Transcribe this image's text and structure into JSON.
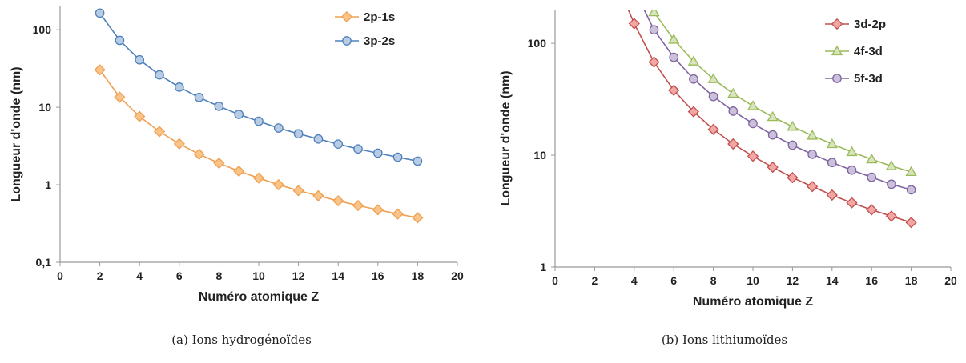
{
  "chart_data": [
    {
      "type": "line",
      "caption": "(a) Ions hydrogénoïdes",
      "xlabel": "Numéro atomique Z",
      "ylabel": "Longueur d'onde (nm)",
      "y_scale": "log",
      "xlim": [
        0,
        20
      ],
      "ylim": [
        0.1,
        200
      ],
      "x_ticks": [
        0,
        2,
        4,
        6,
        8,
        10,
        12,
        14,
        16,
        18,
        20
      ],
      "y_ticks": [
        {
          "value": 0.1,
          "label": "0,1"
        },
        {
          "value": 1,
          "label": "1"
        },
        {
          "value": 10,
          "label": "10"
        },
        {
          "value": 100,
          "label": "100"
        }
      ],
      "legend_position": "top-right",
      "series": [
        {
          "name": "2p-1s",
          "marker": "diamond",
          "color": "#f0a050",
          "fill": "#f8c48a",
          "x": [
            2,
            3,
            4,
            5,
            6,
            7,
            8,
            9,
            10,
            11,
            12,
            13,
            14,
            15,
            16,
            17,
            18
          ],
          "y": [
            30.4,
            13.5,
            7.6,
            4.86,
            3.38,
            2.48,
            1.9,
            1.5,
            1.22,
            1.0,
            0.84,
            0.72,
            0.62,
            0.54,
            0.475,
            0.42,
            0.375
          ]
        },
        {
          "name": "3p-2s",
          "marker": "circle",
          "color": "#4f81bd",
          "fill": "#b8cce4",
          "x": [
            2,
            3,
            4,
            5,
            6,
            7,
            8,
            9,
            10,
            11,
            12,
            13,
            14,
            15,
            16,
            17,
            18
          ],
          "y": [
            164,
            73,
            41,
            26.2,
            18.2,
            13.4,
            10.3,
            8.1,
            6.6,
            5.4,
            4.55,
            3.9,
            3.35,
            2.9,
            2.56,
            2.27,
            2.02
          ]
        }
      ]
    },
    {
      "type": "line",
      "caption": "(b) Ions lithiumoïdes",
      "xlabel": "Numéro atomique Z",
      "ylabel": "Longueur d'onde (nm)",
      "y_scale": "log",
      "xlim": [
        0,
        20
      ],
      "ylim": [
        1,
        200
      ],
      "x_ticks": [
        0,
        2,
        4,
        6,
        8,
        10,
        12,
        14,
        16,
        18,
        20
      ],
      "y_ticks": [
        {
          "value": 1,
          "label": "1"
        },
        {
          "value": 10,
          "label": "10"
        },
        {
          "value": 100,
          "label": "100"
        }
      ],
      "legend_position": "top-right",
      "series": [
        {
          "name": "3d-2p",
          "marker": "diamond",
          "color": "#c0504d",
          "fill": "#f2a7a5",
          "x": [
            4,
            5,
            6,
            7,
            8,
            9,
            10,
            11,
            12,
            13,
            14,
            15,
            16,
            17,
            18
          ],
          "y": [
            150,
            68,
            38,
            24.5,
            17,
            12.6,
            9.8,
            7.8,
            6.3,
            5.25,
            4.4,
            3.75,
            3.25,
            2.85,
            2.5
          ],
          "line_from_x": 3.7,
          "line_from_y": 200
        },
        {
          "name": "4f-3d",
          "marker": "triangle",
          "color": "#9bbb59",
          "fill": "#d7e4bd",
          "x": [
            5,
            6,
            7,
            8,
            9,
            10,
            11,
            12,
            13,
            14,
            15,
            16,
            17,
            18
          ],
          "y": [
            190,
            108,
            69,
            48,
            35.5,
            27.5,
            22,
            18,
            15,
            12.6,
            10.7,
            9.2,
            8.0,
            7.1
          ],
          "line_from_x": 4.9,
          "line_from_y": 200
        },
        {
          "name": "5f-3d",
          "marker": "circle",
          "color": "#8064a2",
          "fill": "#ccc1da",
          "x": [
            5,
            6,
            7,
            8,
            9,
            10,
            11,
            12,
            13,
            14,
            15,
            16,
            17,
            18
          ],
          "y": [
            132,
            75,
            48,
            33.5,
            24.8,
            19.2,
            15.2,
            12.3,
            10.2,
            8.6,
            7.35,
            6.35,
            5.5,
            4.9
          ],
          "line_from_x": 4.5,
          "line_from_y": 200
        }
      ]
    }
  ]
}
